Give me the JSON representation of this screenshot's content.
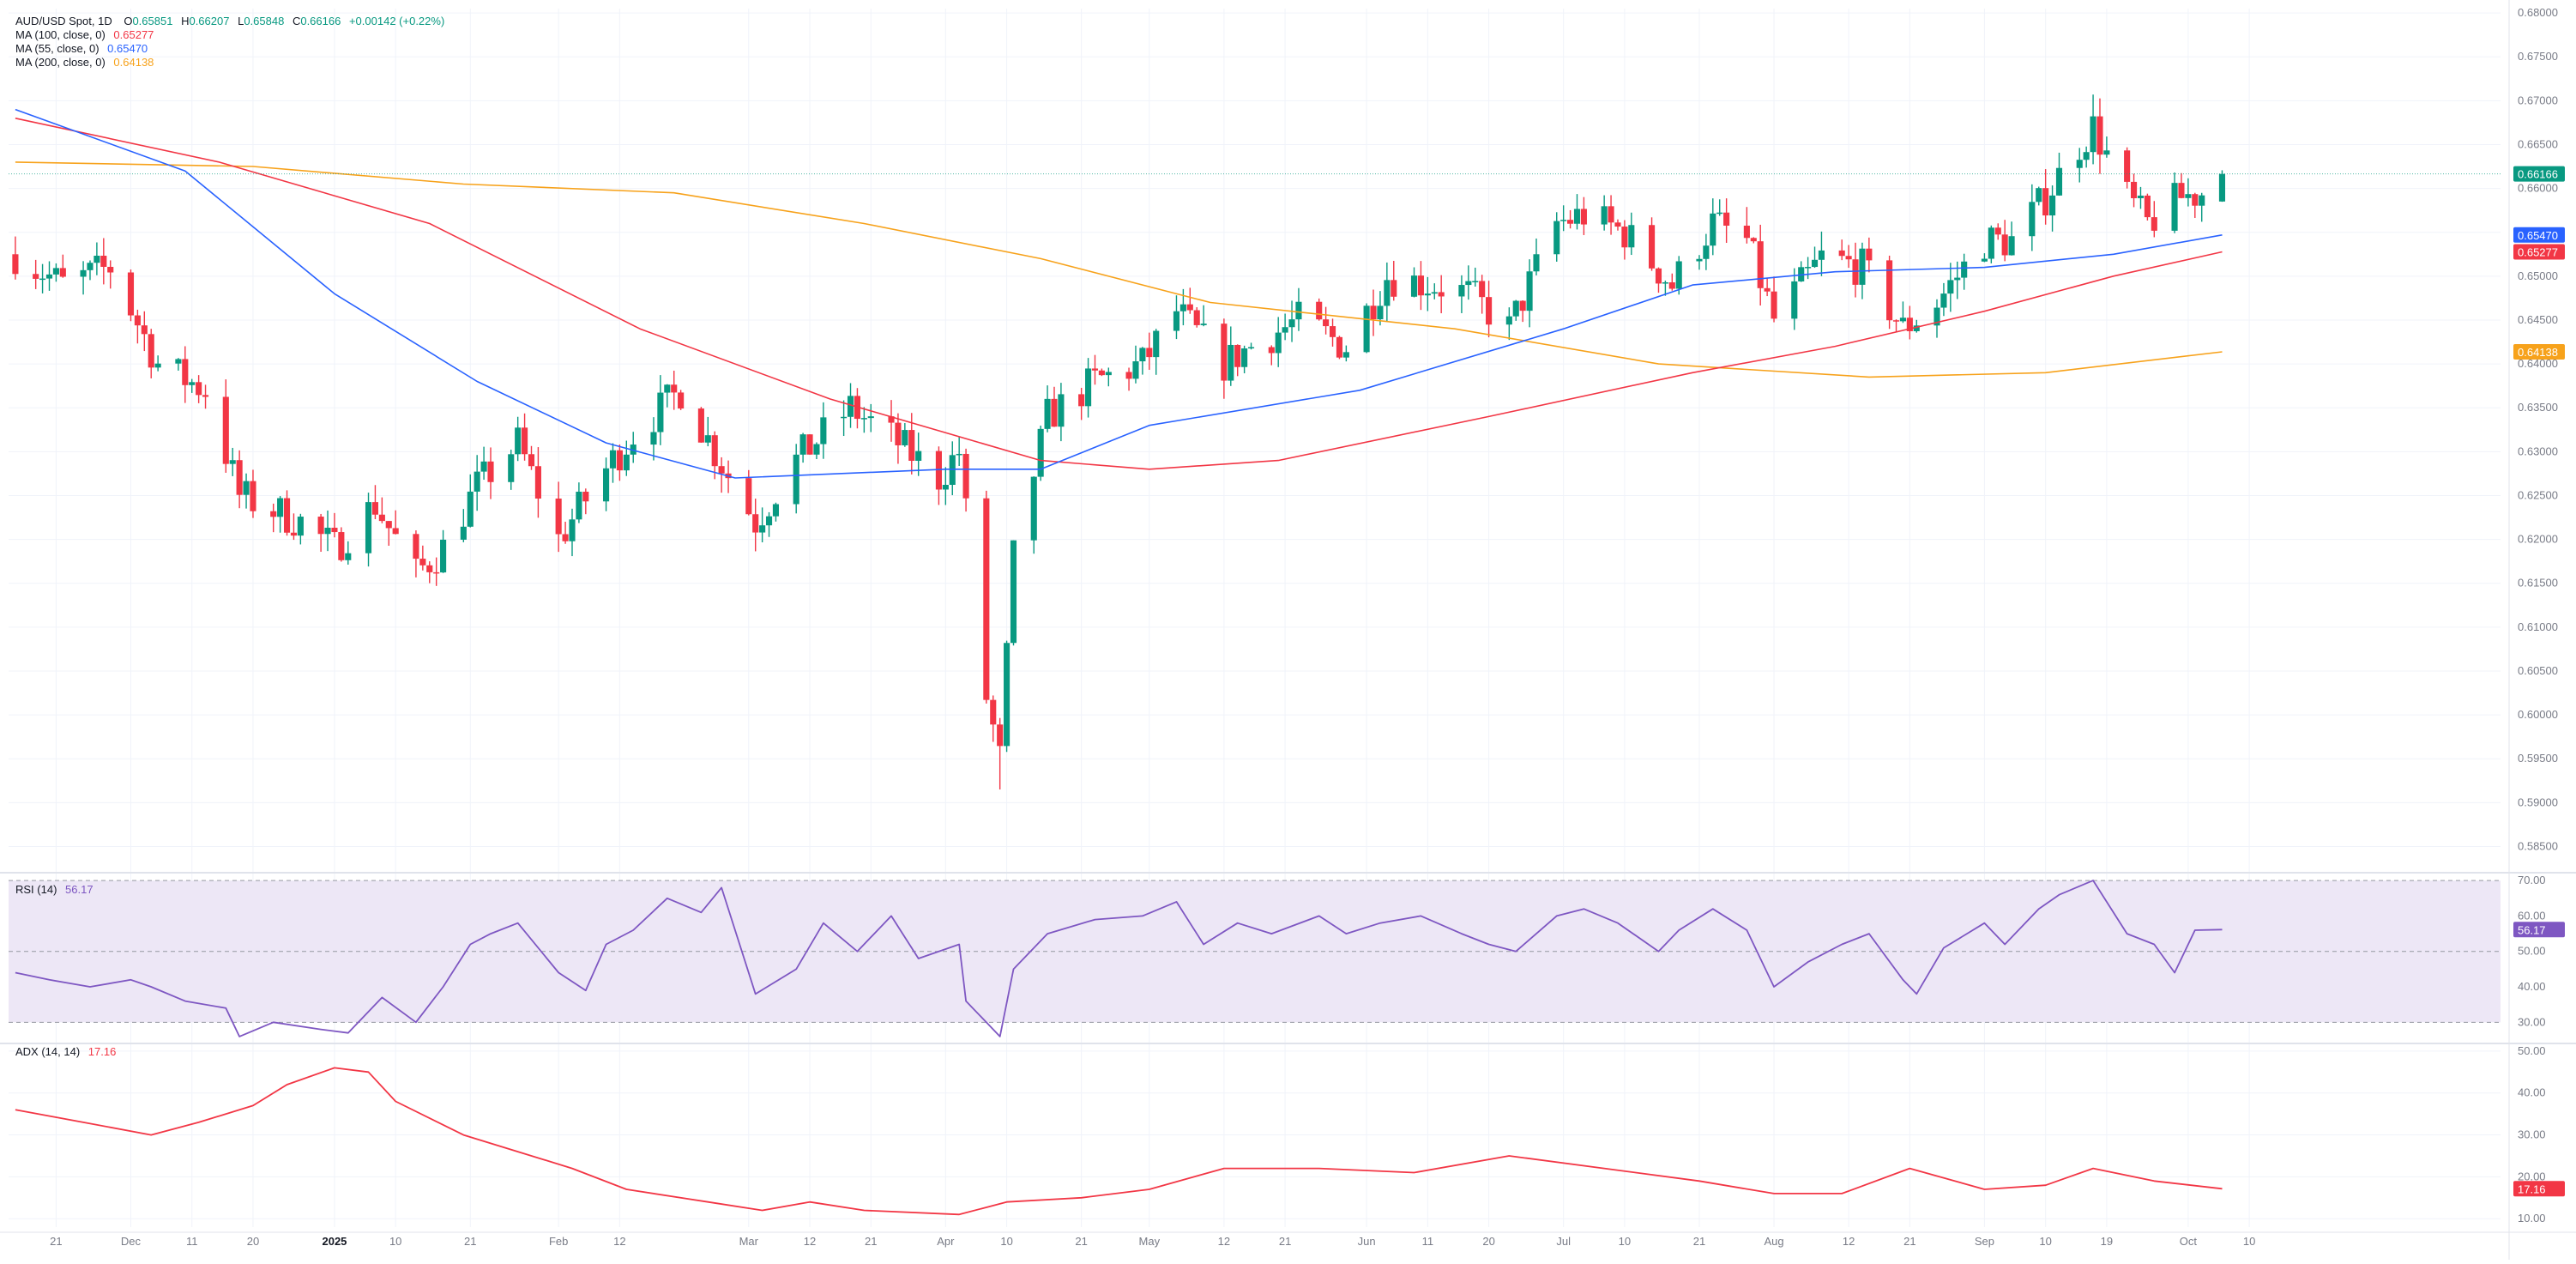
{
  "colors": {
    "up": "#089981",
    "down": "#f23645",
    "ma100": "#f23645",
    "ma55": "#2962ff",
    "ma200": "#f7a21b",
    "rsi": "#7e57c2",
    "rsi_band": "#ede7f6",
    "adx": "#f23645",
    "grid": "#f0f3fa",
    "axis_text": "#787b86",
    "current_price_bg": "#089981"
  },
  "legend": {
    "symbol": "AUD/USD Spot, 1D",
    "ohlc": {
      "o_label": "O",
      "o": "0.65851",
      "h_label": "H",
      "h": "0.66207",
      "l_label": "L",
      "l": "0.65848",
      "c_label": "C",
      "c": "0.66166",
      "change": "+0.00142 (+0.22%)"
    },
    "ma100": {
      "label": "MA (100, close, 0)",
      "value": "0.65277"
    },
    "ma55": {
      "label": "MA (55, close, 0)",
      "value": "0.65470"
    },
    "ma200": {
      "label": "MA (200, close, 0)",
      "value": "0.64138"
    },
    "rsi": {
      "label": "RSI (14)",
      "value": "56.17"
    },
    "adx": {
      "label": "ADX (14, 14)",
      "value": "17.16"
    }
  },
  "chart_data": [
    {
      "type": "candlestick",
      "title": "AUD/USD Spot, 1D",
      "y_ticks": [
        "0.68000",
        "0.67500",
        "0.67000",
        "0.66500",
        "0.66000",
        "0.65500",
        "0.65000",
        "0.64500",
        "0.64000",
        "0.63500",
        "0.63000",
        "0.62500",
        "0.62000",
        "0.61500",
        "0.61000",
        "0.60500",
        "0.60000",
        "0.59500",
        "0.59000",
        "0.58500"
      ],
      "ylim": [
        0.5825,
        0.6805
      ],
      "current_price": 0.66166,
      "current_price_label": "0.66166",
      "ma_labels": {
        "ma55": "0.65470",
        "ma100": "0.65277",
        "ma200": "0.64138"
      },
      "x_labels": [
        {
          "label": "21",
          "date": "2024-11-21"
        },
        {
          "label": "Dec",
          "date": "2024-12-02"
        },
        {
          "label": "11",
          "date": "2024-12-11"
        },
        {
          "label": "20",
          "date": "2024-12-20"
        },
        {
          "label": "2025",
          "date": "2025-01-01",
          "bold": true
        },
        {
          "label": "10",
          "date": "2025-01-10"
        },
        {
          "label": "21",
          "date": "2025-01-21"
        },
        {
          "label": "Feb",
          "date": "2025-02-03"
        },
        {
          "label": "12",
          "date": "2025-02-12"
        },
        {
          "label": "Mar",
          "date": "2025-03-03"
        },
        {
          "label": "12",
          "date": "2025-03-12"
        },
        {
          "label": "21",
          "date": "2025-03-21"
        },
        {
          "label": "Apr",
          "date": "2025-04-01"
        },
        {
          "label": "10",
          "date": "2025-04-10"
        },
        {
          "label": "21",
          "date": "2025-04-21"
        },
        {
          "label": "May",
          "date": "2025-05-01"
        },
        {
          "label": "12",
          "date": "2025-05-12"
        },
        {
          "label": "21",
          "date": "2025-05-21"
        },
        {
          "label": "Jun",
          "date": "2025-06-02"
        },
        {
          "label": "11",
          "date": "2025-06-11"
        },
        {
          "label": "20",
          "date": "2025-06-20"
        },
        {
          "label": "Jul",
          "date": "2025-07-01"
        },
        {
          "label": "10",
          "date": "2025-07-10"
        },
        {
          "label": "21",
          "date": "2025-07-21"
        },
        {
          "label": "Aug",
          "date": "2025-08-01"
        },
        {
          "label": "12",
          "date": "2025-08-12"
        },
        {
          "label": "21",
          "date": "2025-08-21"
        },
        {
          "label": "Sep",
          "date": "2025-09-01"
        },
        {
          "label": "10",
          "date": "2025-09-10"
        },
        {
          "label": "19",
          "date": "2025-09-19"
        },
        {
          "label": "Oct",
          "date": "2025-10-01"
        },
        {
          "label": "10",
          "date": "2025-10-10"
        }
      ],
      "close_path": [
        [
          "2024-11-15",
          0.6525
        ],
        [
          "2024-11-22",
          0.649
        ],
        [
          "2024-11-29",
          0.651
        ],
        [
          "2024-12-06",
          0.64
        ],
        [
          "2024-12-13",
          0.637
        ],
        [
          "2024-12-18",
          0.625
        ],
        [
          "2024-12-27",
          0.622
        ],
        [
          "2025-01-01",
          0.619
        ],
        [
          "2025-01-07",
          0.624
        ],
        [
          "2025-01-13",
          0.616
        ],
        [
          "2025-01-17",
          0.619
        ],
        [
          "2025-01-22",
          0.626
        ],
        [
          "2025-01-28",
          0.631
        ],
        [
          "2025-02-03",
          0.62
        ],
        [
          "2025-02-10",
          0.628
        ],
        [
          "2025-02-14",
          0.632
        ],
        [
          "2025-02-21",
          0.637
        ],
        [
          "2025-02-26",
          0.63
        ],
        [
          "2025-03-04",
          0.622
        ],
        [
          "2025-03-10",
          0.629
        ],
        [
          "2025-03-18",
          0.635
        ],
        [
          "2025-03-25",
          0.631
        ],
        [
          "2025-03-31",
          0.627
        ],
        [
          "2025-04-03",
          0.63
        ],
        [
          "2025-04-07",
          0.602
        ],
        [
          "2025-04-09",
          0.595
        ],
        [
          "2025-04-11",
          0.618
        ],
        [
          "2025-04-16",
          0.634
        ],
        [
          "2025-04-23",
          0.638
        ],
        [
          "2025-04-30",
          0.64
        ],
        [
          "2025-05-05",
          0.646
        ],
        [
          "2025-05-12",
          0.64
        ],
        [
          "2025-05-16",
          0.642
        ],
        [
          "2025-05-23",
          0.645
        ],
        [
          "2025-05-30",
          0.642
        ],
        [
          "2025-06-05",
          0.65
        ],
        [
          "2025-06-12",
          0.649
        ],
        [
          "2025-06-17",
          0.648
        ],
        [
          "2025-06-23",
          0.644
        ],
        [
          "2025-06-30",
          0.656
        ],
        [
          "2025-07-04",
          0.657
        ],
        [
          "2025-07-10",
          0.655
        ],
        [
          "2025-07-17",
          0.649
        ],
        [
          "2025-07-23",
          0.656
        ],
        [
          "2025-07-28",
          0.654
        ],
        [
          "2025-08-01",
          0.645
        ],
        [
          "2025-08-08",
          0.652
        ],
        [
          "2025-08-14",
          0.651
        ],
        [
          "2025-08-20",
          0.644
        ],
        [
          "2025-08-25",
          0.647
        ],
        [
          "2025-09-01",
          0.654
        ],
        [
          "2025-09-05",
          0.654
        ],
        [
          "2025-09-10",
          0.659
        ],
        [
          "2025-09-15",
          0.665
        ],
        [
          "2025-09-17",
          0.667
        ],
        [
          "2025-09-22",
          0.659
        ],
        [
          "2025-09-25",
          0.656
        ],
        [
          "2025-09-30",
          0.659
        ],
        [
          "2025-10-03",
          0.6595
        ],
        [
          "2025-10-06",
          0.6617
        ]
      ],
      "wick_extremes": {
        "high": {
          "date": "2025-09-17",
          "value": 0.6707
        },
        "low": {
          "date": "2025-04-09",
          "value": 0.5915
        }
      },
      "ma55_path": [
        [
          "2024-11-15",
          0.669
        ],
        [
          "2024-12-10",
          0.662
        ],
        [
          "2025-01-01",
          0.648
        ],
        [
          "2025-01-22",
          0.638
        ],
        [
          "2025-02-10",
          0.631
        ],
        [
          "2025-03-01",
          0.627
        ],
        [
          "2025-04-01",
          0.628
        ],
        [
          "2025-04-15",
          0.628
        ],
        [
          "2025-05-01",
          0.633
        ],
        [
          "2025-06-01",
          0.637
        ],
        [
          "2025-07-01",
          0.644
        ],
        [
          "2025-07-20",
          0.649
        ],
        [
          "2025-08-10",
          0.6505
        ],
        [
          "2025-09-01",
          0.651
        ],
        [
          "2025-09-20",
          0.6525
        ],
        [
          "2025-10-06",
          0.6547
        ]
      ],
      "ma100_path": [
        [
          "2024-11-15",
          0.668
        ],
        [
          "2024-12-15",
          0.663
        ],
        [
          "2025-01-15",
          0.656
        ],
        [
          "2025-02-15",
          0.644
        ],
        [
          "2025-03-15",
          0.636
        ],
        [
          "2025-04-15",
          0.629
        ],
        [
          "2025-05-01",
          0.628
        ],
        [
          "2025-05-20",
          0.629
        ],
        [
          "2025-06-20",
          0.634
        ],
        [
          "2025-07-20",
          0.639
        ],
        [
          "2025-08-10",
          0.642
        ],
        [
          "2025-09-01",
          0.646
        ],
        [
          "2025-09-20",
          0.65
        ],
        [
          "2025-10-06",
          0.65277
        ]
      ],
      "ma200_path": [
        [
          "2024-11-15",
          0.663
        ],
        [
          "2024-12-20",
          0.6625
        ],
        [
          "2025-01-20",
          0.6605
        ],
        [
          "2025-02-20",
          0.6595
        ],
        [
          "2025-03-20",
          0.656
        ],
        [
          "2025-04-15",
          0.652
        ],
        [
          "2025-05-10",
          0.647
        ],
        [
          "2025-06-15",
          0.644
        ],
        [
          "2025-07-15",
          0.64
        ],
        [
          "2025-08-15",
          0.6385
        ],
        [
          "2025-09-10",
          0.639
        ],
        [
          "2025-10-06",
          0.64138
        ]
      ]
    },
    {
      "type": "line",
      "title": "RSI (14)",
      "y_ticks": [
        "70.00",
        "60.00",
        "50.00",
        "40.00",
        "30.00"
      ],
      "ylim": [
        25,
        71
      ],
      "band": [
        30,
        70
      ],
      "midline": 50,
      "current_label": "56.17",
      "points": [
        [
          "2024-11-15",
          44
        ],
        [
          "2024-11-20",
          42
        ],
        [
          "2024-11-26",
          40
        ],
        [
          "2024-12-02",
          42
        ],
        [
          "2024-12-05",
          40
        ],
        [
          "2024-12-10",
          36
        ],
        [
          "2024-12-16",
          34
        ],
        [
          "2024-12-18",
          26
        ],
        [
          "2024-12-23",
          30
        ],
        [
          "2024-12-30",
          28
        ],
        [
          "2025-01-03",
          27
        ],
        [
          "2025-01-08",
          37
        ],
        [
          "2025-01-13",
          30
        ],
        [
          "2025-01-17",
          40
        ],
        [
          "2025-01-21",
          52
        ],
        [
          "2025-01-24",
          55
        ],
        [
          "2025-01-28",
          58
        ],
        [
          "2025-02-03",
          44
        ],
        [
          "2025-02-07",
          39
        ],
        [
          "2025-02-10",
          52
        ],
        [
          "2025-02-14",
          56
        ],
        [
          "2025-02-19",
          65
        ],
        [
          "2025-02-24",
          61
        ],
        [
          "2025-02-27",
          68
        ],
        [
          "2025-03-04",
          38
        ],
        [
          "2025-03-10",
          45
        ],
        [
          "2025-03-14",
          58
        ],
        [
          "2025-03-19",
          50
        ],
        [
          "2025-03-24",
          60
        ],
        [
          "2025-03-28",
          48
        ],
        [
          "2025-04-03",
          52
        ],
        [
          "2025-04-04",
          36
        ],
        [
          "2025-04-07",
          30
        ],
        [
          "2025-04-09",
          26
        ],
        [
          "2025-04-11",
          45
        ],
        [
          "2025-04-16",
          55
        ],
        [
          "2025-04-23",
          59
        ],
        [
          "2025-04-30",
          60
        ],
        [
          "2025-05-05",
          64
        ],
        [
          "2025-05-09",
          52
        ],
        [
          "2025-05-14",
          58
        ],
        [
          "2025-05-19",
          55
        ],
        [
          "2025-05-26",
          60
        ],
        [
          "2025-05-30",
          55
        ],
        [
          "2025-06-04",
          58
        ],
        [
          "2025-06-10",
          60
        ],
        [
          "2025-06-16",
          55
        ],
        [
          "2025-06-20",
          52
        ],
        [
          "2025-06-24",
          50
        ],
        [
          "2025-06-30",
          60
        ],
        [
          "2025-07-04",
          62
        ],
        [
          "2025-07-09",
          58
        ],
        [
          "2025-07-15",
          50
        ],
        [
          "2025-07-18",
          56
        ],
        [
          "2025-07-23",
          62
        ],
        [
          "2025-07-28",
          56
        ],
        [
          "2025-08-01",
          40
        ],
        [
          "2025-08-06",
          47
        ],
        [
          "2025-08-11",
          52
        ],
        [
          "2025-08-15",
          55
        ],
        [
          "2025-08-20",
          42
        ],
        [
          "2025-08-22",
          38
        ],
        [
          "2025-08-26",
          51
        ],
        [
          "2025-09-01",
          58
        ],
        [
          "2025-09-04",
          52
        ],
        [
          "2025-09-09",
          62
        ],
        [
          "2025-09-12",
          66
        ],
        [
          "2025-09-17",
          70
        ],
        [
          "2025-09-22",
          55
        ],
        [
          "2025-09-26",
          52
        ],
        [
          "2025-09-29",
          44
        ],
        [
          "2025-10-02",
          56
        ],
        [
          "2025-10-06",
          56.17
        ]
      ]
    },
    {
      "type": "line",
      "title": "ADX (14, 14)",
      "y_ticks": [
        "50.00",
        "40.00",
        "30.00",
        "20.00",
        "10.00"
      ],
      "ylim": [
        8,
        51
      ],
      "current_label": "17.16",
      "points": [
        [
          "2024-11-15",
          36
        ],
        [
          "2024-11-25",
          33
        ],
        [
          "2024-12-05",
          30
        ],
        [
          "2024-12-12",
          33
        ],
        [
          "2024-12-20",
          37
        ],
        [
          "2024-12-25",
          42
        ],
        [
          "2025-01-01",
          46
        ],
        [
          "2025-01-06",
          45
        ],
        [
          "2025-01-10",
          38
        ],
        [
          "2025-01-20",
          30
        ],
        [
          "2025-01-28",
          26
        ],
        [
          "2025-02-05",
          22
        ],
        [
          "2025-02-13",
          17
        ],
        [
          "2025-02-25",
          14
        ],
        [
          "2025-03-05",
          12
        ],
        [
          "2025-03-12",
          14
        ],
        [
          "2025-03-20",
          12
        ],
        [
          "2025-04-03",
          11
        ],
        [
          "2025-04-10",
          14
        ],
        [
          "2025-04-21",
          15
        ],
        [
          "2025-05-01",
          17
        ],
        [
          "2025-05-12",
          22
        ],
        [
          "2025-05-26",
          22
        ],
        [
          "2025-06-09",
          21
        ],
        [
          "2025-06-23",
          25
        ],
        [
          "2025-07-07",
          22
        ],
        [
          "2025-07-21",
          19
        ],
        [
          "2025-08-01",
          16
        ],
        [
          "2025-08-11",
          16
        ],
        [
          "2025-08-21",
          22
        ],
        [
          "2025-09-01",
          17
        ],
        [
          "2025-09-10",
          18
        ],
        [
          "2025-09-17",
          22
        ],
        [
          "2025-09-26",
          19
        ],
        [
          "2025-10-06",
          17.16
        ]
      ]
    }
  ]
}
